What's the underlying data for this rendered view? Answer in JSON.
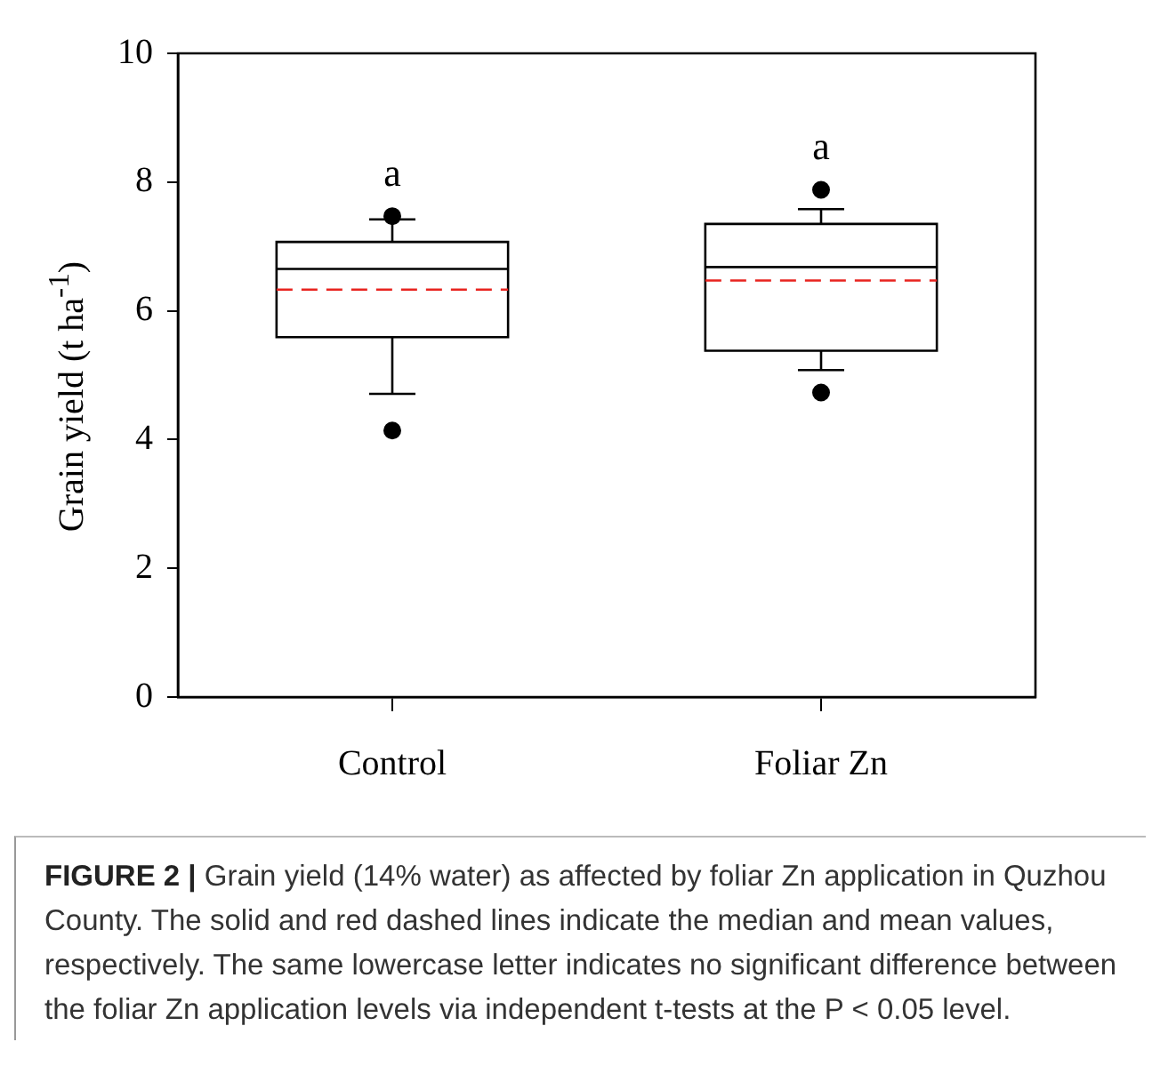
{
  "chart_data": {
    "type": "box",
    "title": "FIGURE 2 |",
    "ylabel": "Grain yield (t ha$^{-1}$)",
    "categories": [
      "Control",
      "Foliar Zn"
    ],
    "boxes": [
      {
        "low": 4.71,
        "q1": 5.59,
        "median": 6.65,
        "q3": 7.07,
        "high": 7.42,
        "mean": 6.33,
        "outliers": [
          7.47,
          4.14
        ]
      },
      {
        "low": 5.08,
        "q1": 5.38,
        "median": 6.68,
        "q3": 7.35,
        "high": 7.58,
        "mean": 6.47,
        "outliers": [
          7.88,
          4.73
        ]
      }
    ],
    "ylim": [
      0,
      10
    ],
    "yticks": [
      0,
      2,
      4,
      6,
      8,
      10
    ],
    "grid": false,
    "legend": false,
    "annotations": [
      "a",
      "a"
    ],
    "subtitle": "Grain yield (14% water) as affected by foliar Zn application in Quzhou County. The solid and red dashed lines indicate the median and mean values, respectively. The same lowercase letter indicates no significant difference between the foliar Zn application levels via independent t-tests at the P < 0.05 level."
  }
}
